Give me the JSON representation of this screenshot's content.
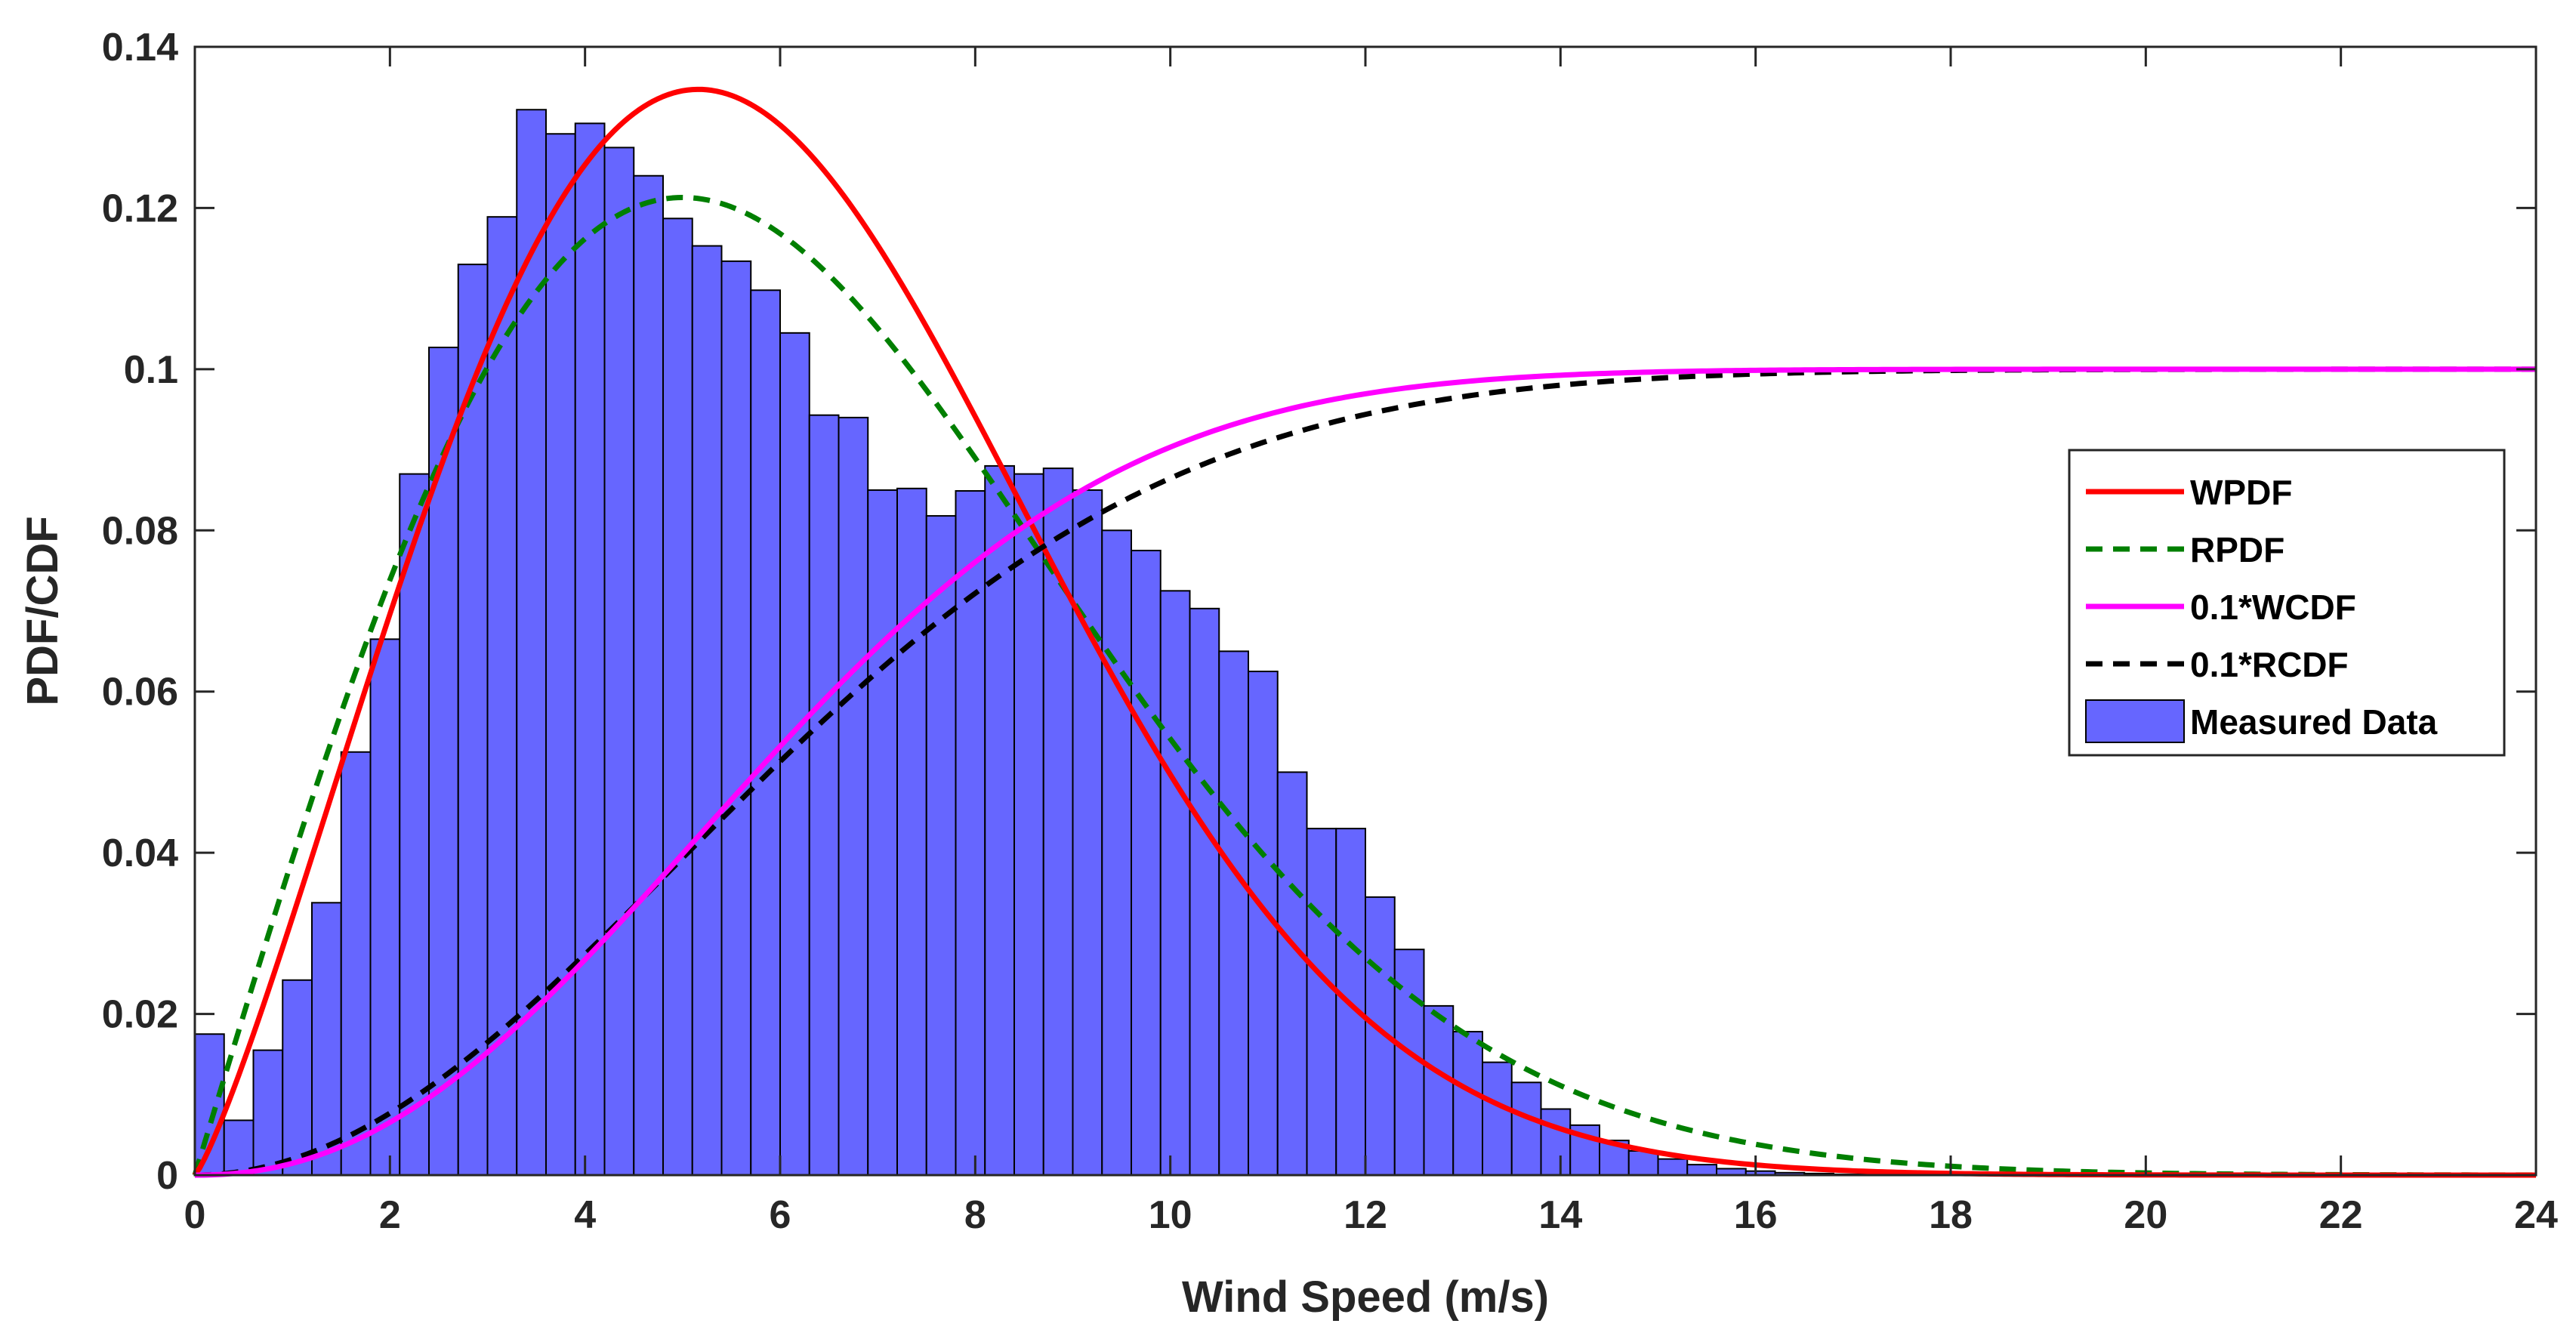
{
  "chart_data": {
    "type": "bar",
    "title": "",
    "xlabel": "Wind Speed (m/s)",
    "ylabel": "PDF/CDF",
    "xlim": [
      0,
      24
    ],
    "ylim": [
      0,
      0.14
    ],
    "grid": false,
    "legend_position": "right",
    "x_ticks": [
      "0",
      "2",
      "4",
      "6",
      "8",
      "10",
      "12",
      "14",
      "16",
      "18",
      "20",
      "22",
      "24"
    ],
    "y_ticks": [
      "0",
      "0.02",
      "0.04",
      "0.06",
      "0.08",
      "0.1",
      "0.12",
      "0.14"
    ],
    "histogram": {
      "name": "Measured Data",
      "color": "#6666ff",
      "edge_color": "#000000",
      "bin_width": 0.3,
      "bin_start": 0,
      "values": [
        0.0175,
        0.0068,
        0.0155,
        0.0242,
        0.0338,
        0.0525,
        0.0665,
        0.087,
        0.1027,
        0.113,
        0.1189,
        0.1322,
        0.1292,
        0.1305,
        0.1275,
        0.124,
        0.1187,
        0.1153,
        0.1134,
        0.1098,
        0.1045,
        0.0943,
        0.094,
        0.085,
        0.0852,
        0.0818,
        0.0849,
        0.088,
        0.087,
        0.0877,
        0.085,
        0.08,
        0.0775,
        0.0725,
        0.0703,
        0.065,
        0.0625,
        0.05,
        0.043,
        0.043,
        0.0345,
        0.028,
        0.021,
        0.0178,
        0.014,
        0.0115,
        0.0082,
        0.0062,
        0.0043,
        0.003,
        0.002,
        0.0013,
        0.0008,
        0.0005,
        0.0003,
        0.0002,
        0.0001,
        0.0001
      ]
    },
    "series": [
      {
        "name": "WPDF",
        "color": "#ff0000",
        "dash": "solid",
        "kind": "weibull_pdf",
        "k": 2.2,
        "c": 6.8,
        "scale": 1
      },
      {
        "name": "RPDF",
        "color": "#007f00",
        "dash": "dashed",
        "kind": "rayleigh_pdf",
        "sigma": 5.0,
        "scale": 1
      },
      {
        "name": "0.1*WCDF",
        "color": "#ff00ff",
        "dash": "solid",
        "kind": "weibull_cdf",
        "k": 2.2,
        "c": 6.8,
        "scale": 0.1
      },
      {
        "name": "0.1*RCDF",
        "color": "#000000",
        "dash": "dashed",
        "kind": "rayleigh_cdf",
        "sigma": 5.0,
        "scale": 0.1
      }
    ]
  }
}
